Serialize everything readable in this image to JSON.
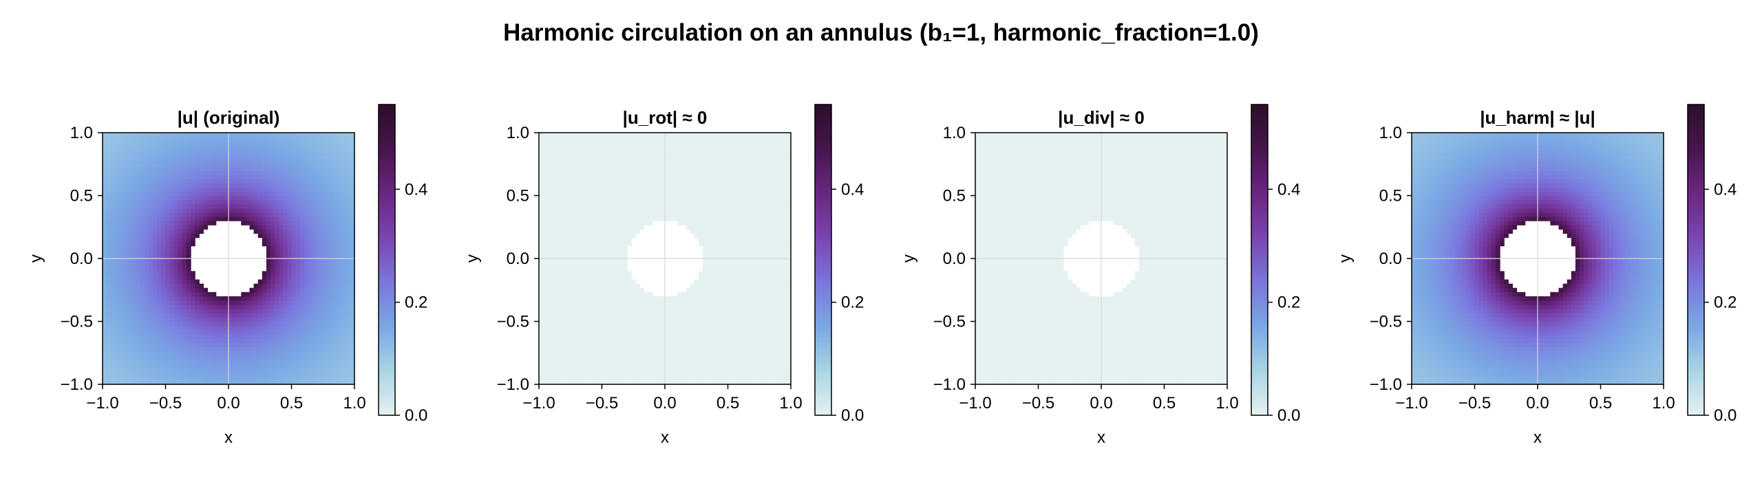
{
  "figure": {
    "title": "Harmonic circulation on an annulus  (b₁=1, harmonic_fraction=1.0)"
  },
  "colormap": {
    "name": "dense",
    "stops": [
      "#e6f1f1",
      "#a9d5e3",
      "#7aa8e4",
      "#7a76dd",
      "#7a46b2",
      "#6b2783",
      "#47154d",
      "#2c0f29"
    ]
  },
  "chart_data": [
    {
      "type": "heatmap",
      "title": "|u| (original)",
      "xlabel": "x",
      "ylabel": "y",
      "xlim": [
        -1.0,
        1.0
      ],
      "ylim": [
        -1.0,
        1.0
      ],
      "xticks": [
        -1.0,
        -0.5,
        0.0,
        0.5,
        1.0
      ],
      "xtick_labels": [
        "−1.0",
        "−0.5",
        "0.0",
        "0.5",
        "1.0"
      ],
      "yticks": [
        -1.0,
        -0.5,
        0.0,
        0.5,
        1.0
      ],
      "ytick_labels": [
        "−1.0",
        "−0.5",
        "0.0",
        "0.5",
        "1.0"
      ],
      "field": "0.15/r",
      "hole_radius": 0.3,
      "grid_resolution": 60,
      "colorbar": {
        "clim": [
          0.0,
          0.55
        ],
        "ticks": [
          0.0,
          0.2,
          0.4
        ],
        "tick_labels": [
          "0.0",
          "0.2",
          "0.4"
        ]
      }
    },
    {
      "type": "heatmap",
      "title": "|u_rot| ≈ 0",
      "xlabel": "x",
      "ylabel": "y",
      "xlim": [
        -1.0,
        1.0
      ],
      "ylim": [
        -1.0,
        1.0
      ],
      "xticks": [
        -1.0,
        -0.5,
        0.0,
        0.5,
        1.0
      ],
      "xtick_labels": [
        "−1.0",
        "−0.5",
        "0.0",
        "0.5",
        "1.0"
      ],
      "yticks": [
        -1.0,
        -0.5,
        0.0,
        0.5,
        1.0
      ],
      "ytick_labels": [
        "−1.0",
        "−0.5",
        "0.0",
        "0.5",
        "1.0"
      ],
      "field": "zero",
      "hole_radius": 0.3,
      "grid_resolution": 60,
      "colorbar": {
        "clim": [
          0.0,
          0.55
        ],
        "ticks": [
          0.0,
          0.2,
          0.4
        ],
        "tick_labels": [
          "0.0",
          "0.2",
          "0.4"
        ]
      }
    },
    {
      "type": "heatmap",
      "title": "|u_div| ≈ 0",
      "xlabel": "x",
      "ylabel": "y",
      "xlim": [
        -1.0,
        1.0
      ],
      "ylim": [
        -1.0,
        1.0
      ],
      "xticks": [
        -1.0,
        -0.5,
        0.0,
        0.5,
        1.0
      ],
      "xtick_labels": [
        "−1.0",
        "−0.5",
        "0.0",
        "0.5",
        "1.0"
      ],
      "yticks": [
        -1.0,
        -0.5,
        0.0,
        0.5,
        1.0
      ],
      "ytick_labels": [
        "−1.0",
        "−0.5",
        "0.0",
        "0.5",
        "1.0"
      ],
      "field": "zero",
      "hole_radius": 0.3,
      "grid_resolution": 60,
      "colorbar": {
        "clim": [
          0.0,
          0.55
        ],
        "ticks": [
          0.0,
          0.2,
          0.4
        ],
        "tick_labels": [
          "0.0",
          "0.2",
          "0.4"
        ]
      }
    },
    {
      "type": "heatmap",
      "title": "|u_harm| ≈ |u|",
      "xlabel": "x",
      "ylabel": "y",
      "xlim": [
        -1.0,
        1.0
      ],
      "ylim": [
        -1.0,
        1.0
      ],
      "xticks": [
        -1.0,
        -0.5,
        0.0,
        0.5,
        1.0
      ],
      "xtick_labels": [
        "−1.0",
        "−0.5",
        "0.0",
        "0.5",
        "1.0"
      ],
      "yticks": [
        -1.0,
        -0.5,
        0.0,
        0.5,
        1.0
      ],
      "ytick_labels": [
        "−1.0",
        "−0.5",
        "0.0",
        "0.5",
        "1.0"
      ],
      "field": "0.15/r",
      "hole_radius": 0.3,
      "grid_resolution": 60,
      "colorbar": {
        "clim": [
          0.0,
          0.55
        ],
        "ticks": [
          0.0,
          0.2,
          0.4
        ],
        "tick_labels": [
          "0.0",
          "0.2",
          "0.4"
        ]
      }
    }
  ]
}
